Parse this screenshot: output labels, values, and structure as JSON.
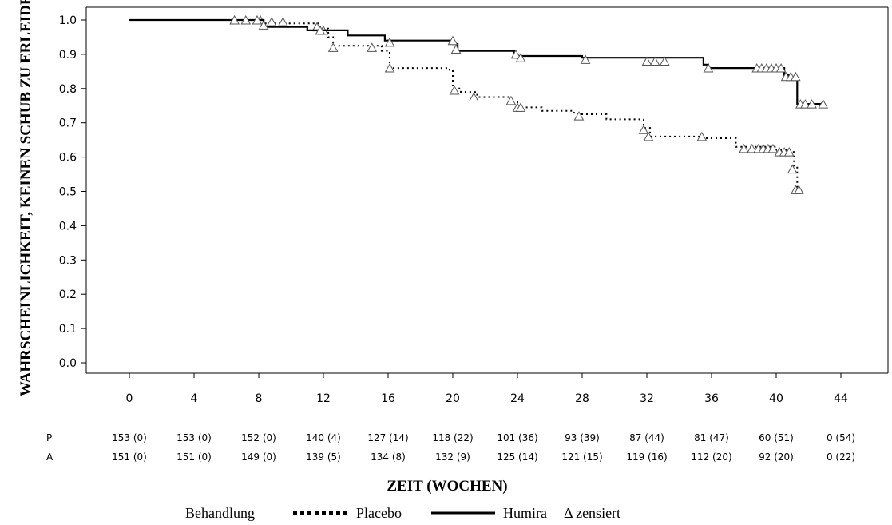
{
  "chart_data": {
    "type": "line",
    "xlabel": "ZEIT (WOCHEN)",
    "ylabel": "WAHRSCHEINLICHKEIT, KEINEN SCHUB ZU ERLEIDEN",
    "xlim": [
      -4,
      47
    ],
    "ylim": [
      -0.04,
      1.07
    ],
    "xticks": [
      0,
      4,
      8,
      12,
      16,
      20,
      24,
      28,
      32,
      36,
      40,
      44
    ],
    "xtick_labels": [
      "0",
      "4",
      "8",
      "12",
      "16",
      "20",
      "24",
      "28",
      "32",
      "36",
      "40",
      "44"
    ],
    "yticks": [
      0.0,
      0.1,
      0.2,
      0.3,
      0.4,
      0.5,
      0.6,
      0.7,
      0.8,
      0.9,
      1.0
    ],
    "ytick_labels": [
      "0.0",
      "0.1",
      "0.2",
      "0.3",
      "0.4",
      "0.5",
      "0.6",
      "0.7",
      "0.8",
      "0.9",
      "1.0"
    ],
    "grid": false,
    "legend": {
      "title": "Behandlung",
      "placement": "bottom-center",
      "censored_label": "Δ zensiert"
    },
    "series": [
      {
        "name": "Placebo",
        "style": "dotted",
        "color": "#000000",
        "step_points": [
          [
            0,
            1.0
          ],
          [
            8.0,
            1.0
          ],
          [
            8.3,
            0.99
          ],
          [
            11.5,
            0.99
          ],
          [
            11.8,
            0.975
          ],
          [
            12.3,
            0.95
          ],
          [
            12.6,
            0.925
          ],
          [
            15.6,
            0.91
          ],
          [
            16.1,
            0.86
          ],
          [
            19.8,
            0.855
          ],
          [
            20.0,
            0.8
          ],
          [
            20.5,
            0.79
          ],
          [
            21.5,
            0.775
          ],
          [
            23.5,
            0.76
          ],
          [
            24.0,
            0.745
          ],
          [
            25.5,
            0.735
          ],
          [
            27.5,
            0.725
          ],
          [
            29.5,
            0.71
          ],
          [
            31.8,
            0.685
          ],
          [
            32.2,
            0.66
          ],
          [
            35.5,
            0.655
          ],
          [
            37.5,
            0.63
          ],
          [
            40.0,
            0.62
          ],
          [
            41.0,
            0.615
          ],
          [
            41.1,
            0.575
          ],
          [
            41.3,
            0.505
          ]
        ],
        "censored": [
          [
            8.1,
            1.0
          ],
          [
            8.8,
            0.995
          ],
          [
            9.5,
            0.995
          ],
          [
            11.6,
            0.98
          ],
          [
            12.0,
            0.97
          ],
          [
            12.6,
            0.92
          ],
          [
            15.0,
            0.92
          ],
          [
            16.1,
            0.86
          ],
          [
            20.1,
            0.795
          ],
          [
            21.3,
            0.775
          ],
          [
            23.6,
            0.765
          ],
          [
            24.0,
            0.745
          ],
          [
            24.2,
            0.745
          ],
          [
            27.8,
            0.72
          ],
          [
            31.8,
            0.68
          ],
          [
            32.1,
            0.66
          ],
          [
            35.4,
            0.66
          ],
          [
            38.0,
            0.625
          ],
          [
            38.5,
            0.625
          ],
          [
            38.9,
            0.625
          ],
          [
            39.2,
            0.625
          ],
          [
            39.5,
            0.625
          ],
          [
            39.8,
            0.625
          ],
          [
            40.2,
            0.615
          ],
          [
            40.5,
            0.615
          ],
          [
            40.8,
            0.615
          ],
          [
            41.0,
            0.565
          ],
          [
            41.2,
            0.505
          ],
          [
            41.4,
            0.505
          ]
        ]
      },
      {
        "name": "Humira",
        "style": "solid",
        "color": "#000000",
        "step_points": [
          [
            0,
            1.0
          ],
          [
            8.0,
            1.0
          ],
          [
            8.3,
            0.98
          ],
          [
            11.0,
            0.97
          ],
          [
            13.5,
            0.955
          ],
          [
            15.8,
            0.94
          ],
          [
            20.0,
            0.93
          ],
          [
            20.3,
            0.91
          ],
          [
            23.8,
            0.895
          ],
          [
            28.0,
            0.89
          ],
          [
            35.5,
            0.87
          ],
          [
            35.8,
            0.86
          ],
          [
            40.5,
            0.84
          ],
          [
            40.8,
            0.83
          ],
          [
            41.3,
            0.755
          ],
          [
            43.0,
            0.755
          ]
        ],
        "censored": [
          [
            6.5,
            1.0
          ],
          [
            7.2,
            1.0
          ],
          [
            7.9,
            1.0
          ],
          [
            8.3,
            0.985
          ],
          [
            11.8,
            0.97
          ],
          [
            16.1,
            0.935
          ],
          [
            20.0,
            0.94
          ],
          [
            20.2,
            0.915
          ],
          [
            23.9,
            0.9
          ],
          [
            24.2,
            0.89
          ],
          [
            28.2,
            0.885
          ],
          [
            32.0,
            0.88
          ],
          [
            32.5,
            0.88
          ],
          [
            33.1,
            0.88
          ],
          [
            35.8,
            0.86
          ],
          [
            38.8,
            0.86
          ],
          [
            39.1,
            0.86
          ],
          [
            39.4,
            0.86
          ],
          [
            39.7,
            0.86
          ],
          [
            40.0,
            0.86
          ],
          [
            40.3,
            0.86
          ],
          [
            40.6,
            0.835
          ],
          [
            40.9,
            0.835
          ],
          [
            41.2,
            0.835
          ],
          [
            41.5,
            0.755
          ],
          [
            41.8,
            0.755
          ],
          [
            42.2,
            0.755
          ],
          [
            42.9,
            0.755
          ]
        ]
      }
    ],
    "risk_table": {
      "rows": [
        {
          "label": "P",
          "values": [
            "153 (0)",
            "153 (0)",
            "152 (0)",
            "140 (4)",
            "127 (14)",
            "118 (22)",
            "101 (36)",
            "93 (39)",
            "87 (44)",
            "81 (47)",
            "60 (51)",
            "0 (54)"
          ]
        },
        {
          "label": "A",
          "values": [
            "151 (0)",
            "151 (0)",
            "149 (0)",
            "139 (5)",
            "134 (8)",
            "132 (9)",
            "125 (14)",
            "121 (15)",
            "119 (16)",
            "112 (20)",
            "92 (20)",
            "0 (22)"
          ]
        }
      ]
    }
  }
}
